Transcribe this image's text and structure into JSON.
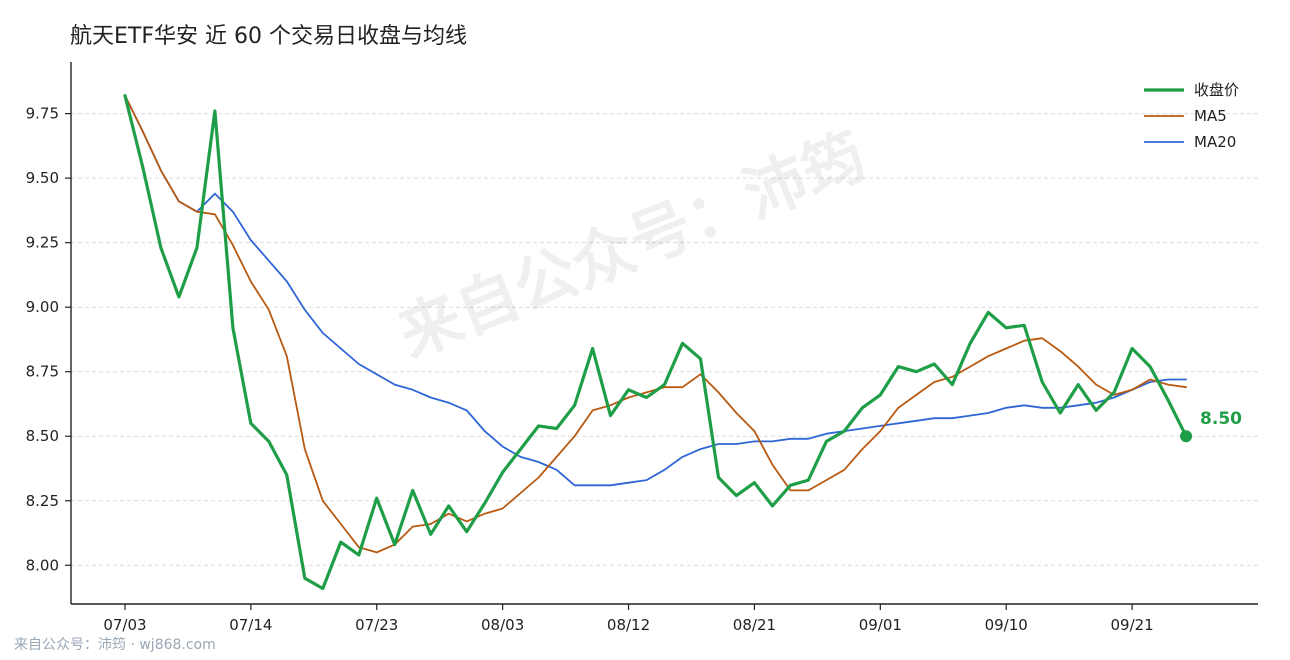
{
  "title": "航天ETF华安 近 60 个交易日收盘与均线",
  "footer": "来自公众号：沛筠 · wj868.com",
  "watermark": "来自公众号：沛筠",
  "colors": {
    "close": "#1f9e48",
    "ma5": "#b85a12",
    "ma20": "#2f66d6"
  },
  "chart_data": {
    "type": "line",
    "title": "航天ETF华安 近 60 个交易日收盘与均线",
    "ylim": [
      7.85,
      9.95
    ],
    "yticks": [
      8.0,
      8.25,
      8.5,
      8.75,
      9.0,
      9.25,
      9.5,
      9.75
    ],
    "ytick_labels": [
      "8.00",
      "8.25",
      "8.50",
      "8.75",
      "9.00",
      "9.25",
      "9.50",
      "9.75"
    ],
    "x_index_range": [
      -3,
      63
    ],
    "xticks": [
      0,
      7,
      14,
      21,
      28,
      35,
      42,
      49,
      56
    ],
    "xtick_labels": [
      "07/03",
      "07/14",
      "07/23",
      "08/03",
      "08/12",
      "08/21",
      "09/01",
      "09/10",
      "09/21"
    ],
    "grid": "horizontal",
    "legend_position": "top-right",
    "series": [
      {
        "name": "收盘价",
        "key": "close",
        "values": [
          9.82,
          9.54,
          9.23,
          9.04,
          9.23,
          9.76,
          8.92,
          8.55,
          8.48,
          8.35,
          7.95,
          7.91,
          8.09,
          8.04,
          8.26,
          8.08,
          8.29,
          8.12,
          8.23,
          8.13,
          8.24,
          8.36,
          8.45,
          8.54,
          8.53,
          8.62,
          8.84,
          8.58,
          8.68,
          8.65,
          8.7,
          8.86,
          8.8,
          8.34,
          8.27,
          8.32,
          8.23,
          8.31,
          8.33,
          8.48,
          8.52,
          8.61,
          8.66,
          8.77,
          8.75,
          8.78,
          8.7,
          8.86,
          8.98,
          8.92,
          8.93,
          8.71,
          8.59,
          8.7,
          8.6,
          8.67,
          8.84,
          8.77,
          8.64,
          8.5
        ]
      },
      {
        "name": "MA5",
        "key": "ma5",
        "values": [
          9.82,
          9.68,
          9.53,
          9.41,
          9.37,
          9.36,
          9.24,
          9.1,
          8.99,
          8.81,
          8.45,
          8.25,
          8.16,
          8.07,
          8.05,
          8.08,
          8.15,
          8.16,
          8.2,
          8.17,
          8.2,
          8.22,
          8.28,
          8.34,
          8.42,
          8.5,
          8.6,
          8.62,
          8.65,
          8.67,
          8.69,
          8.69,
          8.74,
          8.67,
          8.59,
          8.52,
          8.39,
          8.29,
          8.29,
          8.33,
          8.37,
          8.45,
          8.52,
          8.61,
          8.66,
          8.71,
          8.73,
          8.77,
          8.81,
          8.84,
          8.87,
          8.88,
          8.83,
          8.77,
          8.7,
          8.66,
          8.68,
          8.72,
          8.7,
          8.69
        ]
      },
      {
        "name": "MA20",
        "key": "ma20",
        "values": [
          9.82,
          9.68,
          9.53,
          9.41,
          9.37,
          9.44,
          9.37,
          9.26,
          9.18,
          9.1,
          8.99,
          8.9,
          8.84,
          8.78,
          8.74,
          8.7,
          8.68,
          8.65,
          8.63,
          8.6,
          8.52,
          8.46,
          8.42,
          8.4,
          8.37,
          8.31,
          8.31,
          8.31,
          8.32,
          8.33,
          8.37,
          8.42,
          8.45,
          8.47,
          8.47,
          8.48,
          8.48,
          8.49,
          8.49,
          8.51,
          8.52,
          8.53,
          8.54,
          8.55,
          8.56,
          8.57,
          8.57,
          8.58,
          8.59,
          8.61,
          8.62,
          8.61,
          8.61,
          8.62,
          8.63,
          8.65,
          8.68,
          8.71,
          8.72,
          8.72
        ]
      }
    ],
    "last_value_label": "8.50"
  }
}
